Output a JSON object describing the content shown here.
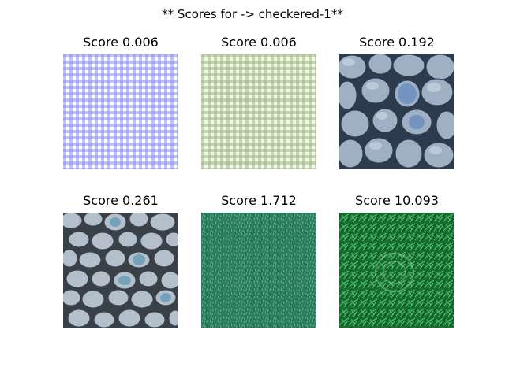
{
  "figure": {
    "suptitle": "** Scores for -> checkered-1**"
  },
  "panels": [
    {
      "title": "Score 0.006",
      "texture": "blue-gingham",
      "colors": [
        "#ffffff",
        "#8b8ff7",
        "#4a52ee"
      ]
    },
    {
      "title": "Score 0.006",
      "texture": "green-gingham",
      "colors": [
        "#f3f5ea",
        "#c4d6ad",
        "#8aab6f"
      ]
    },
    {
      "title": "Score 0.192",
      "texture": "blue-stone-wall",
      "colors": [
        "#2c3c4e",
        "#8fa3ba",
        "#c7d3e0"
      ]
    },
    {
      "title": "Score 0.261",
      "texture": "pebbles",
      "colors": [
        "#3a4048",
        "#aab8c4",
        "#6d9cb8"
      ]
    },
    {
      "title": "Score 1.712",
      "texture": "teal-grass",
      "colors": [
        "#1f5a48",
        "#2f8a6a",
        "#5cb08e"
      ]
    },
    {
      "title": "Score 10.093",
      "texture": "green-grass",
      "colors": [
        "#0d4a22",
        "#1f8f3f",
        "#5ed47a"
      ]
    }
  ]
}
